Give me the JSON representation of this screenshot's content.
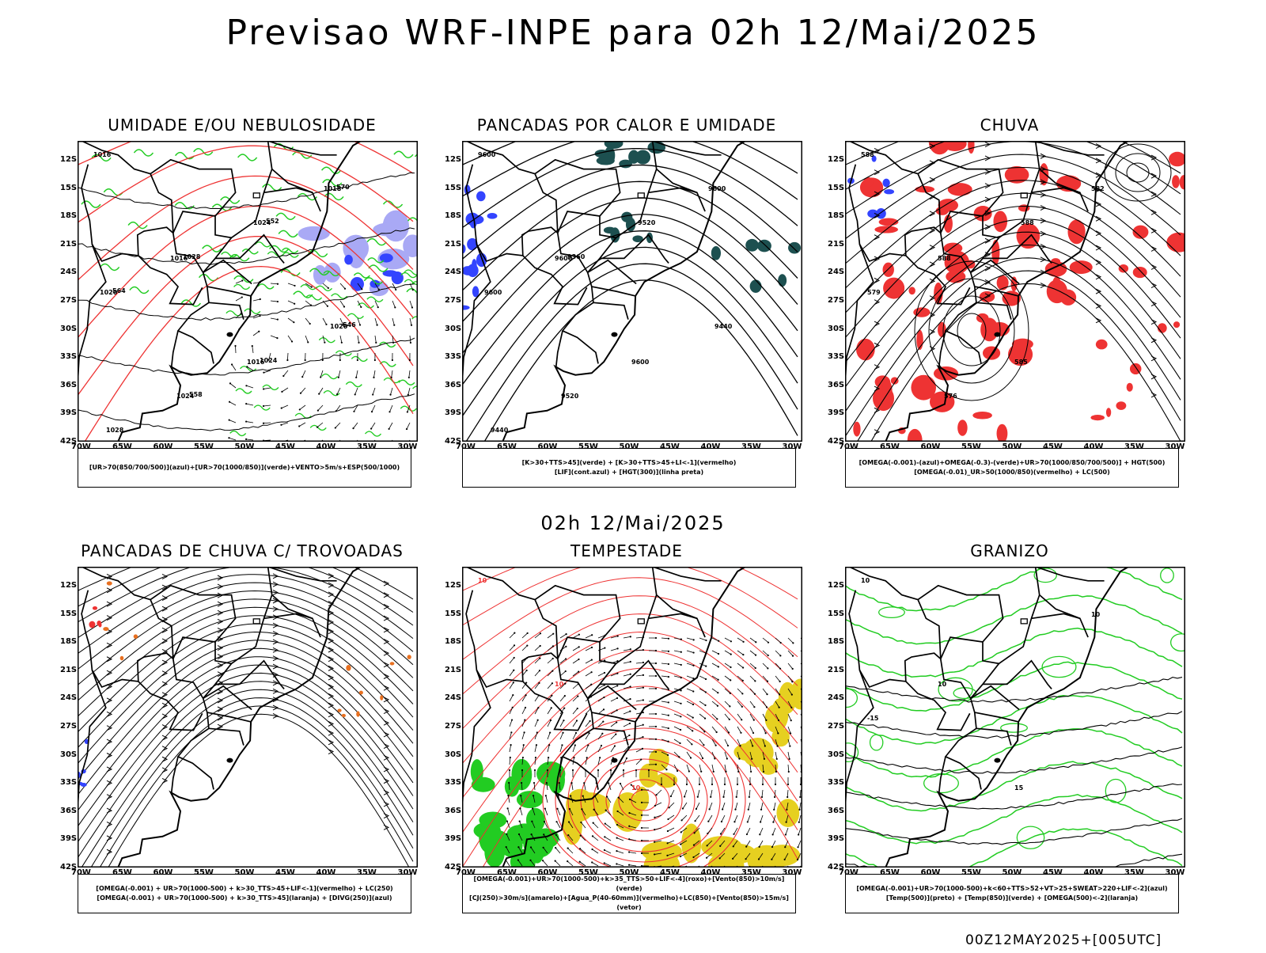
{
  "main_title": "Previsao WRF-INPE  para 02h 12/Mai/2025",
  "middle_title": "02h 12/Mai/2025",
  "footer": "00Z12MAY2025+[005UTC]",
  "lat_labels": [
    "12S",
    "15S",
    "18S",
    "21S",
    "24S",
    "27S",
    "30S",
    "33S",
    "36S",
    "39S",
    "42S"
  ],
  "lon_labels": [
    "70W",
    "65W",
    "60W",
    "55W",
    "50W",
    "45W",
    "40W",
    "35W",
    "30W"
  ],
  "panels": [
    {
      "title": "UMIDADE E/OU NEBULOSIDADE",
      "legend": [
        "[UR>70(850/700/500)](azul)+[UR>70(1000/850)](verde)+VENTO>5m/s+ESP(500/1000)"
      ],
      "contour_labels": [
        "1016",
        "1016",
        "1016",
        "1018",
        "1020",
        "1024",
        "1024",
        "1020",
        "1028",
        "1028",
        "1024",
        "570",
        "564",
        "558",
        "552",
        "546"
      ]
    },
    {
      "title": "PANCADAS POR CALOR E UMIDADE",
      "legend": [
        "[K>30+TTS>45](verde) + [K>30+TTS>45+LI<-1](vermelho)",
        "[LIF](cont.azul) + [HGT(300)](linha preta)"
      ],
      "contour_labels": [
        "9600",
        "9600",
        "9600",
        "9600",
        "9600",
        "9520",
        "9520",
        "9440",
        "9440",
        "9360"
      ]
    },
    {
      "title": "CHUVA",
      "legend": [
        "[OMEGA(-0.001)-(azul)+OMEGA(-0.3)-(verde)+UR>70(1000/850/700/500)] + HGT(500)",
        "[OMEGA(-0.01)_UR>50(1000/850)(vermelho) + LC(500)"
      ],
      "contour_labels": [
        "588",
        "588",
        "585",
        "582",
        "579",
        "576",
        "588"
      ]
    },
    {
      "title": "PANCADAS DE CHUVA C/ TROVOADAS",
      "legend": [
        "[OMEGA(-0.001) + UR>70(1000-500) + k>30_TTS>45+LIF<-1](vermelho) + LC(250)",
        "[OMEGA(-0.001) + UR>70(1000-500) + k>30_TTS>45](laranja) + [DIVG(250)](azul)"
      ],
      "contour_labels": []
    },
    {
      "title": "TEMPESTADE",
      "legend": [
        "[OMEGA(-0.001)+UR>70(1000-500)+k>35_TTS>50+LIF<-4](roxo)+[Vento(850)>10m/s](verde)",
        "[CJ(250)>30m/s](amarelo)+[Agua_P(40-60mm)](vermelho)+LC(850)+[Vento(850)>15m/s](vetor)"
      ],
      "contour_labels": [
        "10",
        "10",
        "10"
      ]
    },
    {
      "title": "GRANIZO",
      "legend": [
        "[OMEGA(-0.001)+UR>70(1000-500)+k<60+TTS>52+VT>25+SWEAT>220+LIF<-2](azul)",
        "[Temp(500)](preto) + [Temp(850)](verde) + [OMEGA(500)<-2](laranja)"
      ],
      "contour_labels": [
        "10",
        "10",
        "15",
        "10",
        "-15"
      ]
    }
  ],
  "colors": {
    "green": "#22cc22",
    "red": "#ee3333",
    "blue": "#3344ff",
    "lavender": "#a9a9f5",
    "teal": "#1d5050",
    "yellow": "#e6d020",
    "orange": "#e87020",
    "darkgreen": "#11aa11"
  }
}
